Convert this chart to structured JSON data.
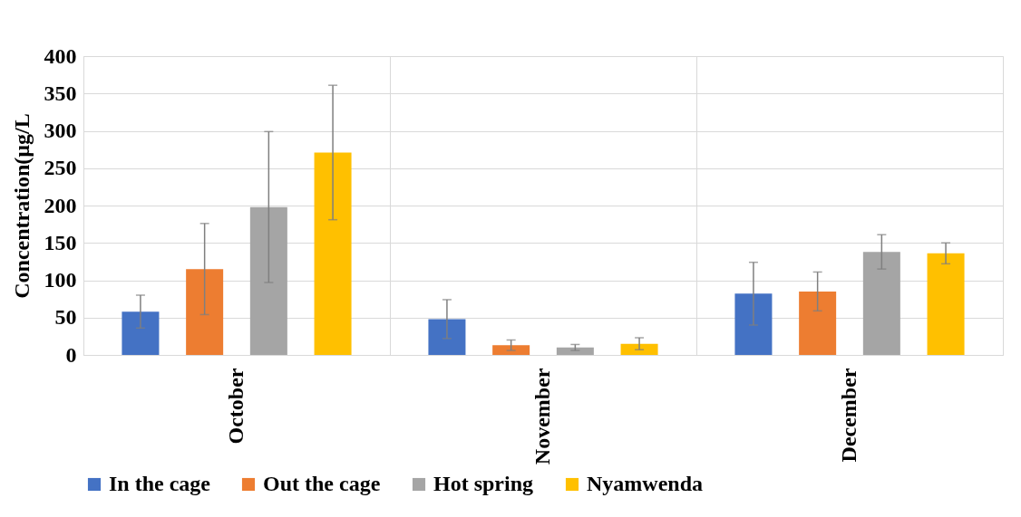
{
  "chart_data": {
    "type": "bar",
    "ylabel": "Concentration(µg/L",
    "categories": [
      "October",
      "November",
      "December"
    ],
    "series": [
      {
        "name": "In the cage",
        "color": "#4472c4",
        "values": [
          58,
          48,
          82
        ],
        "errors": [
          22,
          26,
          42
        ]
      },
      {
        "name": "Out the cage",
        "color": "#ed7d31",
        "values": [
          115,
          13,
          85
        ],
        "errors": [
          61,
          7,
          26
        ]
      },
      {
        "name": "Hot spring",
        "color": "#a5a5a5",
        "values": [
          198,
          10,
          138
        ],
        "errors": [
          101,
          4,
          23
        ]
      },
      {
        "name": "Nyamwenda",
        "color": "#ffc000",
        "values": [
          271,
          15,
          136
        ],
        "errors": [
          90,
          8,
          14
        ]
      }
    ],
    "ylim": [
      0,
      400
    ],
    "yticks": [
      0,
      50,
      100,
      150,
      200,
      250,
      300,
      350,
      400
    ],
    "grid": true,
    "legend": "bottom"
  }
}
